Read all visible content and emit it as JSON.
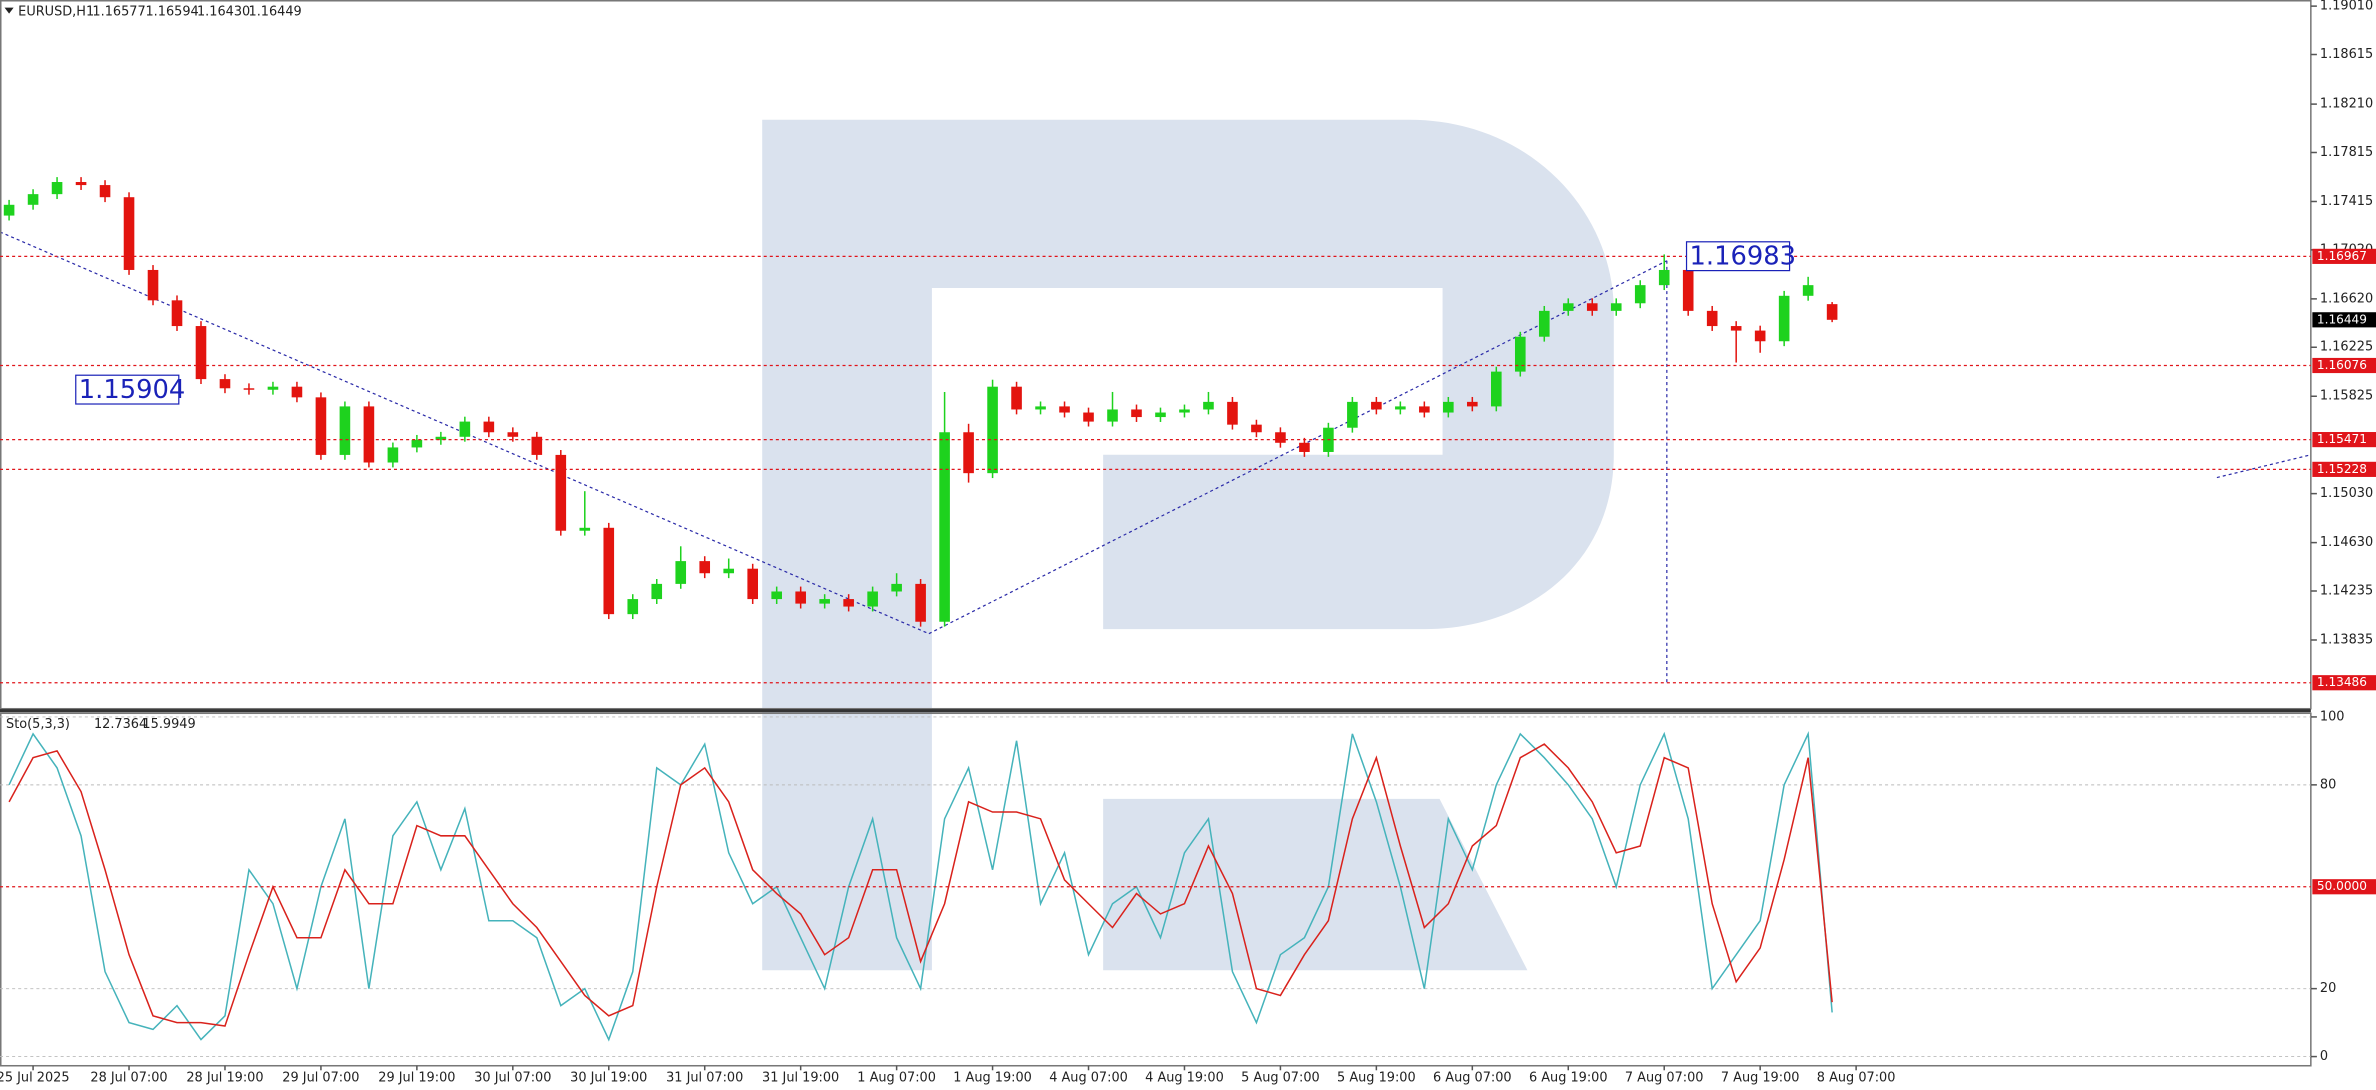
{
  "chart_data": [
    {
      "type": "candlestick",
      "title": "EURUSD,H1",
      "quote": [
        1.16577,
        1.16594,
        {
          "value": 1.1643,
          "label": "1.16430"
        },
        1.16449
      ],
      "categories": [
        null,
        "25 Jul 2025",
        null,
        null,
        null,
        "28 Jul 07:00",
        null,
        null,
        null,
        "28 Jul 19:00",
        null,
        null,
        null,
        "29 Jul 07:00",
        null,
        null,
        null,
        "29 Jul 19:00",
        null,
        null,
        null,
        "30 Jul 07:00",
        null,
        null,
        null,
        "30 Jul 19:00",
        null,
        null,
        null,
        "31 Jul 07:00",
        null,
        null,
        null,
        "31 Jul 19:00",
        null,
        null,
        null,
        "1 Aug 07:00",
        null,
        null,
        null,
        "1 Aug 19:00",
        null,
        null,
        null,
        "4 Aug 07:00",
        null,
        null,
        null,
        "4 Aug 19:00",
        null,
        null,
        null,
        "5 Aug 07:00",
        null,
        null,
        null,
        "5 Aug 19:00",
        null,
        null,
        null,
        "6 Aug 07:00",
        null,
        null,
        null,
        "6 Aug 19:00",
        null,
        null,
        null,
        "7 Aug 07:00",
        null,
        null,
        null,
        "7 Aug 19:00",
        null,
        null,
        null,
        "8 Aug 07:00"
      ],
      "open": [
        1.173,
        1.17388,
        1.17475,
        1.17574,
        1.17549,
        1.1745,
        1.16856,
        1.16608,
        1.16398,
        1.15965,
        1.1589,
        1.15878,
        1.15903,
        1.15816,
        1.15346,
        1.15742,
        1.15284,
        1.15407,
        1.15469,
        1.15494,
        1.15618,
        1.15531,
        1.15494,
        1.15346,
        1.14727,
        1.14751,
        1.14046,
        1.14169,
        1.14293,
        1.14479,
        1.1438,
        1.14417,
        1.14169,
        1.14231,
        1.14132,
        1.14169,
        1.14108,
        1.14231,
        1.14293,
        1.13984,
        1.15531,
        1.15197,
        1.15903,
        1.15717,
        1.15742,
        1.15692,
        1.15618,
        1.15717,
        1.15655,
        1.15692,
        1.15717,
        1.15779,
        1.15593,
        1.15531,
        1.15445,
        1.1537,
        1.15568,
        1.15779,
        1.15717,
        1.15742,
        1.15692,
        1.15779,
        1.15742,
        1.16026,
        1.16311,
        1.16522,
        1.16584,
        1.16522,
        1.16584,
        1.16732,
        1.16856,
        1.16522,
        1.16398,
        1.16361,
        1.16274,
        1.16645,
        1.16577,
        null
      ],
      "high": [
        1.17428,
        1.17515,
        1.17614,
        1.17614,
        1.17589,
        1.1749,
        1.16896,
        1.16648,
        1.16438,
        1.16005,
        1.1593,
        1.15943,
        1.15943,
        1.15856,
        1.15782,
        1.15782,
        1.15447,
        1.15509,
        1.15534,
        1.15658,
        1.15658,
        1.15571,
        1.15534,
        1.15386,
        1.1505,
        1.14791,
        1.14209,
        1.14333,
        1.146,
        1.14519,
        1.145,
        1.14457,
        1.14271,
        1.14271,
        1.14209,
        1.14209,
        1.14271,
        1.1438,
        1.14333,
        1.1586,
        1.156,
        1.1596,
        1.15943,
        1.15782,
        1.15782,
        1.15732,
        1.1586,
        1.15757,
        1.15732,
        1.15757,
        1.1586,
        1.15819,
        1.15633,
        1.15571,
        1.15485,
        1.15608,
        1.15819,
        1.15819,
        1.15782,
        1.15782,
        1.15819,
        1.15819,
        1.16066,
        1.16351,
        1.16562,
        1.16624,
        1.16624,
        1.16624,
        1.16772,
        1.16983,
        1.16896,
        1.16562,
        1.16438,
        1.16401,
        1.16685,
        1.168,
        1.16594,
        null
      ],
      "low": [
        1.1726,
        1.17348,
        1.17435,
        1.17509,
        1.1741,
        1.16816,
        1.16568,
        1.16358,
        1.15925,
        1.1585,
        1.15838,
        1.15838,
        1.15776,
        1.15306,
        1.15306,
        1.15244,
        1.15244,
        1.15367,
        1.15429,
        1.15454,
        1.15491,
        1.15454,
        1.15306,
        1.14687,
        1.14687,
        1.14006,
        1.14006,
        1.14129,
        1.14253,
        1.1434,
        1.1434,
        1.14129,
        1.14129,
        1.14092,
        1.14092,
        1.14068,
        1.14068,
        1.14191,
        1.13944,
        1.13944,
        1.1512,
        1.15157,
        1.15677,
        1.15677,
        1.15652,
        1.15578,
        1.15578,
        1.15615,
        1.15615,
        1.15652,
        1.15677,
        1.15553,
        1.15491,
        1.15405,
        1.1533,
        1.1533,
        1.15528,
        1.15677,
        1.15677,
        1.15652,
        1.15652,
        1.15702,
        1.15702,
        1.15986,
        1.16271,
        1.16482,
        1.16482,
        1.16482,
        1.16544,
        1.16692,
        1.16482,
        1.16358,
        1.161,
        1.1618,
        1.16234,
        1.16605,
        1.1643,
        null
      ],
      "close": [
        1.17388,
        1.17475,
        1.17574,
        1.17549,
        1.1745,
        1.16856,
        1.16608,
        1.16398,
        1.15965,
        1.1589,
        1.15878,
        1.15903,
        1.15816,
        1.15346,
        1.15742,
        1.15284,
        1.15407,
        1.15469,
        1.15494,
        1.15618,
        1.15531,
        1.15494,
        1.15346,
        1.14727,
        1.14751,
        1.14046,
        1.14169,
        1.14293,
        1.14479,
        1.1438,
        1.14417,
        1.14169,
        1.14231,
        1.14132,
        1.14169,
        1.14108,
        1.14231,
        1.14293,
        1.13984,
        1.15531,
        1.15197,
        1.15903,
        1.15717,
        1.15742,
        1.15692,
        1.15618,
        1.15717,
        1.15655,
        1.15692,
        1.15717,
        1.15779,
        1.15593,
        1.15531,
        1.15445,
        1.1537,
        1.15568,
        1.15779,
        1.15717,
        1.15742,
        1.15692,
        1.15779,
        1.15742,
        1.16026,
        1.16311,
        1.16522,
        1.16584,
        1.16522,
        1.16584,
        1.16732,
        1.16856,
        1.16522,
        1.16398,
        1.16361,
        1.16274,
        1.16645,
        1.16732,
        1.16449,
        null
      ],
      "up_color": "#1ed21e",
      "down_color": "#e3140f",
      "ylim": [
        1.1328,
        1.1906
      ],
      "yticks": [
        {
          "value": 1.1901,
          "label": "1.19010"
        },
        1.18615,
        {
          "value": 1.1821,
          "label": "1.18210"
        },
        1.17815,
        1.17415,
        {
          "value": 1.1702,
          "label": "1.17020"
        },
        {
          "value": 1.1662,
          "label": "1.16620"
        },
        1.16225,
        1.15825,
        {
          "value": 1.1503,
          "label": "1.15030"
        },
        {
          "value": 1.1463,
          "label": "1.14630"
        },
        1.14235,
        1.13835
      ],
      "levels": [
        1.16967,
        1.16076,
        1.15471,
        1.15228,
        1.13486
      ],
      "level_color": "#e0141a",
      "current_price": 1.16449,
      "annotations": [
        1.15904,
        1.16983
      ]
    },
    {
      "type": "stochastic",
      "title": "Sto(5,3,3)",
      "quote": [
        12.7364,
        15.9949
      ],
      "series": [
        {
          "color": "#45b3bb",
          "values": [
            80,
            95,
            85,
            65,
            25,
            10,
            8,
            15,
            5,
            12,
            55,
            45,
            20,
            50,
            70,
            20,
            65,
            75,
            55,
            73,
            40,
            40,
            35,
            15,
            20,
            5,
            25,
            85,
            80,
            92,
            60,
            45,
            50,
            35,
            20,
            50,
            70,
            35,
            20,
            70,
            85,
            55,
            93,
            45,
            60,
            30,
            45,
            50,
            35,
            60,
            70,
            25,
            10,
            30,
            35,
            50,
            95,
            75,
            50,
            20,
            70,
            55,
            80,
            95,
            88,
            80,
            70,
            50,
            80,
            95,
            70,
            20,
            30,
            40,
            80,
            95,
            13,
            null
          ]
        },
        {
          "color": "#d9221c",
          "values": [
            75,
            88,
            90,
            78,
            55,
            30,
            12,
            10,
            10,
            9,
            30,
            50,
            35,
            35,
            55,
            45,
            45,
            68,
            65,
            65,
            55,
            45,
            38,
            28,
            18,
            12,
            15,
            50,
            80,
            85,
            75,
            55,
            48,
            42,
            30,
            35,
            55,
            55,
            28,
            45,
            75,
            72,
            72,
            70,
            52,
            45,
            38,
            48,
            42,
            45,
            62,
            48,
            20,
            18,
            30,
            40,
            70,
            88,
            62,
            38,
            45,
            62,
            68,
            88,
            92,
            85,
            75,
            60,
            62,
            88,
            85,
            45,
            22,
            32,
            58,
            88,
            16,
            null
          ]
        }
      ],
      "ylim": [
        -2.7,
        101.3
      ],
      "yticks": [
        0,
        20,
        80,
        100
      ],
      "grid": true,
      "levels": [
        {
          "value": 50,
          "label": "50.0000"
        }
      ],
      "level_color": "#e0141a"
    }
  ]
}
